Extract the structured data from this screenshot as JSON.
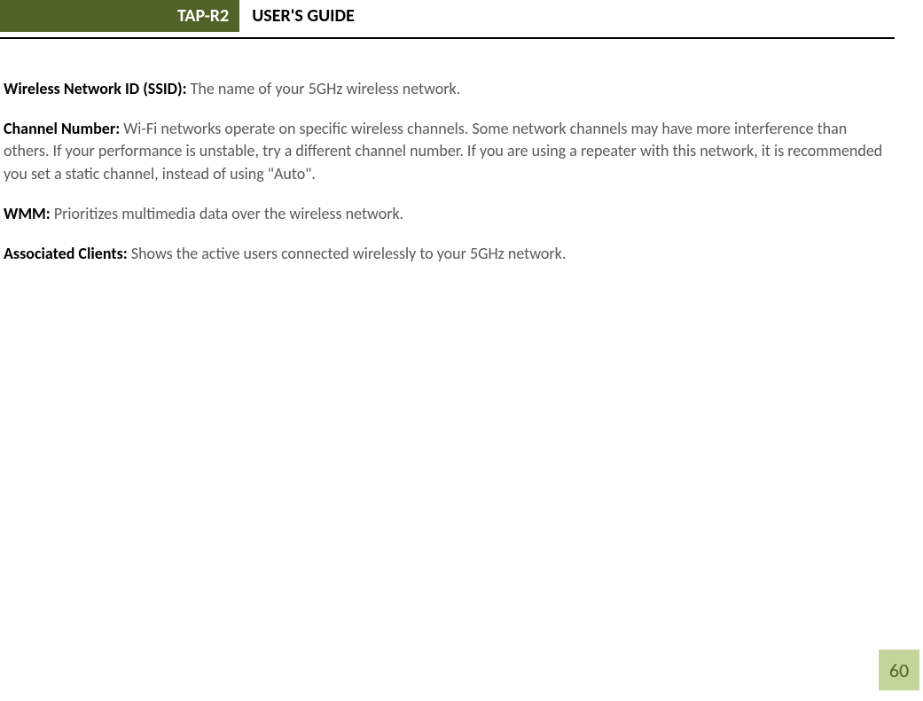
{
  "header": {
    "product": "TAP-R2",
    "title": "USER'S GUIDE",
    "green_bg": "#4f6228",
    "green_text": "#ffffff",
    "title_color": "#000000",
    "underline_color": "#000000"
  },
  "body_text_color": "#595959",
  "term_color": "#000000",
  "background_color": "#ffffff",
  "font_family": "Calibri",
  "paragraphs": [
    {
      "term": "Wireless Network ID (SSID):",
      "text": " The name of your 5GHz wireless network."
    },
    {
      "term": "Channel Number:",
      "text": "  Wi-Fi networks operate on specific wireless channels. Some network channels may have more interference than others. If your performance is unstable, try a different channel number. If you are using a repeater with this network, it is recommended you set a static channel, instead of using \"Auto\"."
    },
    {
      "term": "WMM:",
      "text": " Prioritizes multimedia data over the wireless network."
    },
    {
      "term": "Associated Clients:",
      "text": " Shows the active users connected wirelessly to your 5GHz network."
    }
  ],
  "page_number": {
    "value": "60",
    "bg_color": "#c2d69b",
    "text_color": "#4f6228",
    "font_size": 22
  }
}
